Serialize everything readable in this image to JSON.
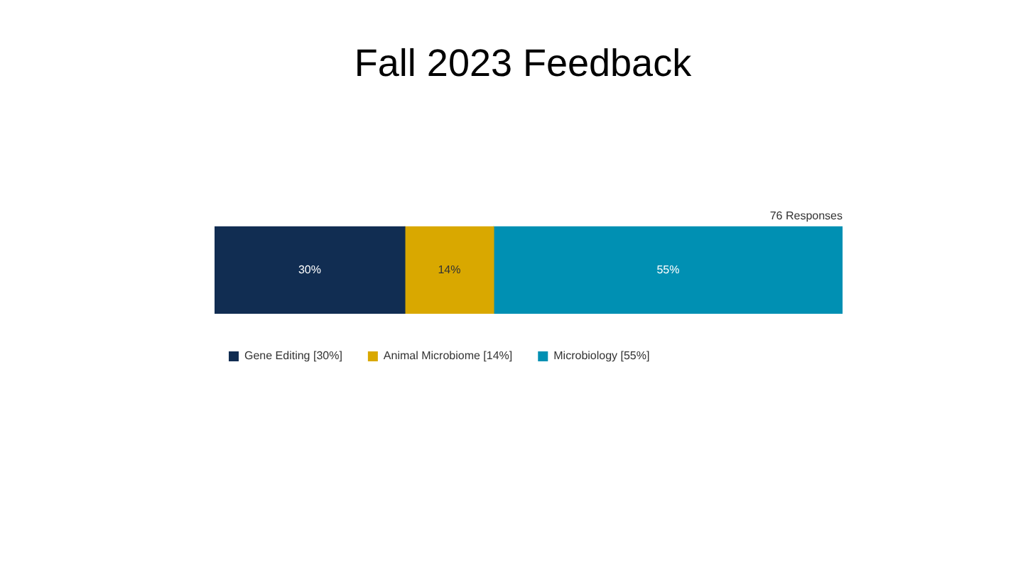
{
  "chart_data": {
    "type": "bar",
    "title": "Fall 2023 Feedback",
    "orientation": "horizontal",
    "stacked": true,
    "categories": [
      null
    ],
    "xlim": [
      0,
      99
    ],
    "tick_labels": false,
    "legend": "bottom",
    "annotations": [
      "76 Responses"
    ],
    "series": [
      {
        "name": "Gene Editing [30%]",
        "color": "#112d52",
        "values": [
          30
        ],
        "value_labels": [
          "30%"
        ]
      },
      {
        "name": "Animal Microbiome [14%]",
        "color": "#d9a800",
        "values": [
          14
        ],
        "value_labels": [
          "14%"
        ]
      },
      {
        "name": "Microbiology [55%]",
        "color": "#0090b3",
        "values": [
          55
        ],
        "value_labels": [
          "55%"
        ]
      }
    ]
  }
}
